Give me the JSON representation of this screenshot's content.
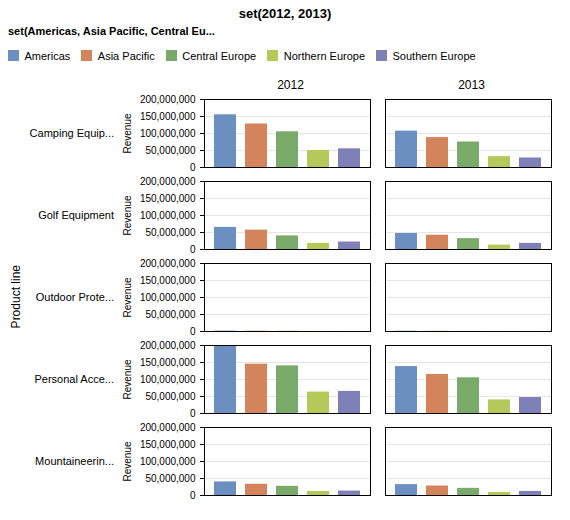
{
  "chart_data": {
    "type": "bar",
    "title": "set(2012, 2013)",
    "xlabel": "Product line",
    "ylabel": "Revenue",
    "legend_title": "set(Americas, Asia Pacific, Central Eu...",
    "legend": "top",
    "categories": [
      "Americas",
      "Asia Pacific",
      "Central Europe",
      "Northern Europe",
      "Southern Europe"
    ],
    "colors": [
      "#6a8fc0",
      "#d4845a",
      "#7aaa6a",
      "#b5c95a",
      "#8080b8"
    ],
    "facet_rows": [
      "Camping Equip...",
      "Golf Equipment",
      "Outdoor Prote...",
      "Personal Acce...",
      "Mountaineerin..."
    ],
    "facet_columns": [
      "2012",
      "2013"
    ],
    "panels": [
      {
        "row": "Camping Equip...",
        "column": "2012",
        "values": [
          155000000,
          128000000,
          105000000,
          50000000,
          55000000
        ]
      },
      {
        "row": "Camping Equip...",
        "column": "2013",
        "values": [
          107000000,
          88000000,
          75000000,
          32000000,
          28000000
        ]
      },
      {
        "row": "Golf Equipment",
        "column": "2012",
        "values": [
          65000000,
          57000000,
          40000000,
          18000000,
          22000000
        ]
      },
      {
        "row": "Golf Equipment",
        "column": "2013",
        "values": [
          47000000,
          42000000,
          32000000,
          13000000,
          18000000
        ]
      },
      {
        "row": "Outdoor Prote...",
        "column": "2012",
        "values": [
          1200000,
          900000,
          600000,
          200000,
          100000
        ]
      },
      {
        "row": "Outdoor Prote...",
        "column": "2013",
        "values": [
          800000,
          500000,
          300000,
          150000,
          80000
        ]
      },
      {
        "row": "Personal Acce...",
        "column": "2012",
        "values": [
          200000000,
          145000000,
          140000000,
          63000000,
          65000000
        ]
      },
      {
        "row": "Personal Acce...",
        "column": "2013",
        "values": [
          138000000,
          115000000,
          105000000,
          40000000,
          47000000
        ]
      },
      {
        "row": "Mountaineerin...",
        "column": "2012",
        "values": [
          40000000,
          33000000,
          27000000,
          12000000,
          13000000
        ]
      },
      {
        "row": "Mountaineerin...",
        "column": "2013",
        "values": [
          32000000,
          28000000,
          21000000,
          9000000,
          12000000
        ]
      }
    ],
    "ylim": [
      0,
      200000000
    ],
    "yticks": [
      0,
      {
        "value": 50000000,
        "label": "50,000,000"
      },
      {
        "value": 100000000,
        "label": "100,000,000"
      },
      {
        "value": 150000000,
        "label": "150,000,000"
      },
      {
        "value": 200000000,
        "label": "200,000,000"
      }
    ],
    "grid": true,
    "tick_labels": "y"
  }
}
